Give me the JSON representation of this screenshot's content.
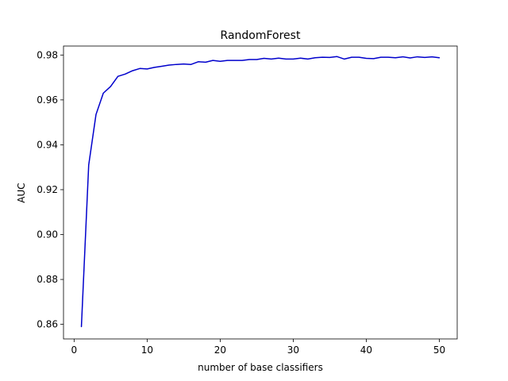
{
  "chart_data": {
    "type": "line",
    "title": "RandomForest",
    "xlabel": "number of base classifiers",
    "ylabel": "AUC",
    "xlim": [
      -1.45,
      52.45
    ],
    "ylim": [
      0.8535,
      0.984
    ],
    "xticks": [
      0,
      10,
      20,
      30,
      40,
      50
    ],
    "xtick_labels": [
      "0",
      "10",
      "20",
      "30",
      "40",
      "50"
    ],
    "yticks": [
      0.86,
      0.88,
      0.9,
      0.92,
      0.94,
      0.96,
      0.98
    ],
    "ytick_labels": [
      "0.86",
      "0.88",
      "0.90",
      "0.92",
      "0.94",
      "0.96",
      "0.98"
    ],
    "grid": false,
    "series": [
      {
        "name": "RandomForest",
        "color": "#0000cc",
        "x": [
          1,
          2,
          3,
          4,
          5,
          6,
          7,
          8,
          9,
          10,
          11,
          12,
          13,
          14,
          15,
          16,
          17,
          18,
          19,
          20,
          21,
          22,
          23,
          24,
          25,
          26,
          27,
          28,
          29,
          30,
          31,
          32,
          33,
          34,
          35,
          36,
          37,
          38,
          39,
          40,
          41,
          42,
          43,
          44,
          45,
          46,
          47,
          48,
          49,
          50
        ],
        "values": [
          0.859,
          0.931,
          0.9535,
          0.963,
          0.966,
          0.9705,
          0.9715,
          0.973,
          0.974,
          0.9738,
          0.9745,
          0.975,
          0.9755,
          0.9758,
          0.976,
          0.9758,
          0.977,
          0.9768,
          0.9776,
          0.9772,
          0.9776,
          0.9776,
          0.9776,
          0.978,
          0.978,
          0.9785,
          0.9782,
          0.9786,
          0.9782,
          0.9782,
          0.9786,
          0.9782,
          0.9788,
          0.979,
          0.9789,
          0.9793,
          0.9782,
          0.979,
          0.979,
          0.9785,
          0.9784,
          0.979,
          0.979,
          0.9788,
          0.9792,
          0.9787,
          0.9792,
          0.9789,
          0.9792,
          0.9788
        ]
      }
    ]
  }
}
